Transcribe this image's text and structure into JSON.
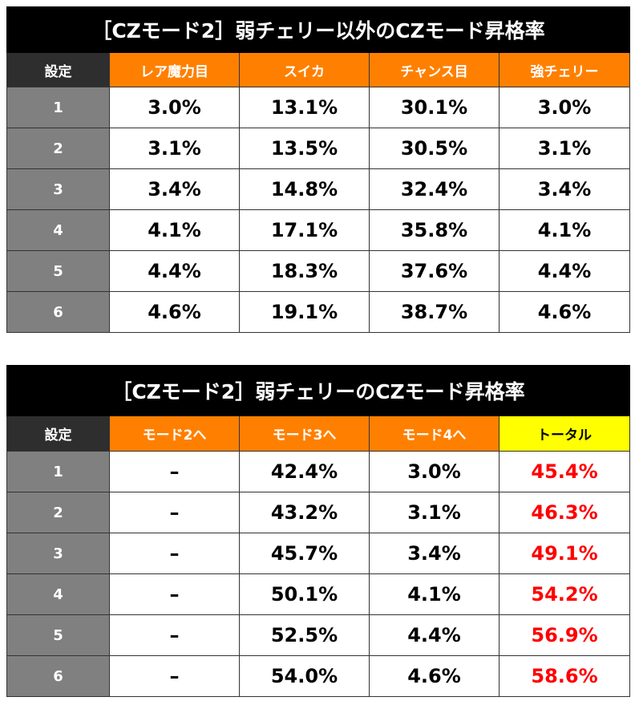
{
  "tables": [
    {
      "title": "［CZモード2］弱チェリー以外のCZモード昇格率",
      "headers": [
        "設定",
        "レア魔力目",
        "スイカ",
        "チャンス目",
        "強チェリー"
      ],
      "rows": [
        [
          "1",
          "3.0%",
          "13.1%",
          "30.1%",
          "3.0%"
        ],
        [
          "2",
          "3.1%",
          "13.5%",
          "30.5%",
          "3.1%"
        ],
        [
          "3",
          "3.4%",
          "14.8%",
          "32.4%",
          "3.4%"
        ],
        [
          "4",
          "4.1%",
          "17.1%",
          "35.8%",
          "4.1%"
        ],
        [
          "5",
          "4.4%",
          "18.3%",
          "37.6%",
          "4.4%"
        ],
        [
          "6",
          "4.6%",
          "19.1%",
          "38.7%",
          "4.6%"
        ]
      ]
    },
    {
      "title": "［CZモード2］弱チェリーのCZモード昇格率",
      "headers": [
        "設定",
        "モード2へ",
        "モード3へ",
        "モード4へ",
        "トータル"
      ],
      "rows": [
        [
          "1",
          "–",
          "42.4%",
          "3.0%",
          "45.4%"
        ],
        [
          "2",
          "–",
          "43.2%",
          "3.1%",
          "46.3%"
        ],
        [
          "3",
          "–",
          "45.7%",
          "3.4%",
          "49.1%"
        ],
        [
          "4",
          "–",
          "50.1%",
          "4.1%",
          "54.2%"
        ],
        [
          "5",
          "–",
          "52.5%",
          "4.4%",
          "56.9%"
        ],
        [
          "6",
          "–",
          "54.0%",
          "4.6%",
          "58.6%"
        ]
      ]
    }
  ],
  "colors": {
    "header_orange": "#ff8000",
    "total_header": "#ffff00",
    "setting_bg": "#808080",
    "total_text": "#ff0000"
  }
}
